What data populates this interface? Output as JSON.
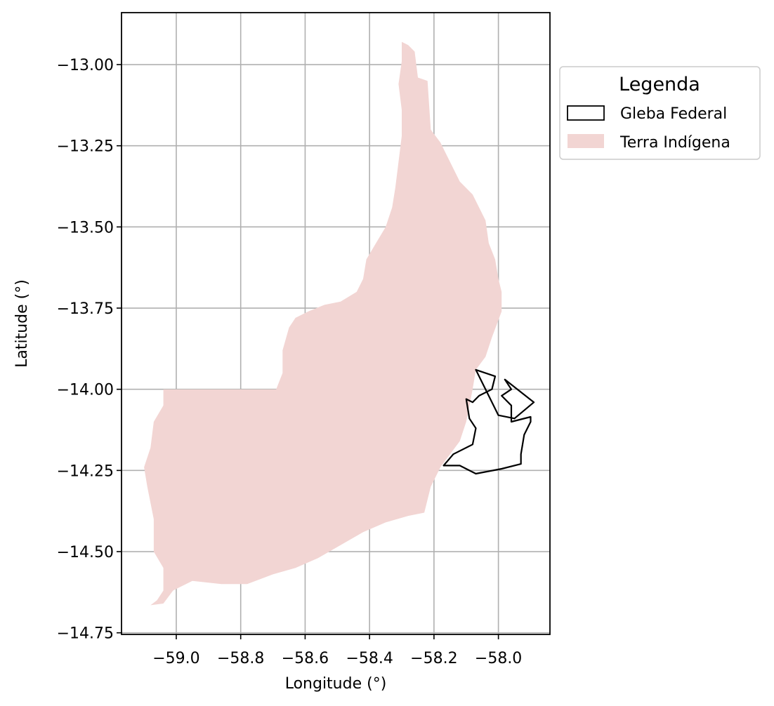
{
  "chart_data": {
    "type": "map",
    "xlabel": "Longitude (°)",
    "ylabel": "Latitude (°)",
    "xlim": [
      -59.17,
      -57.84
    ],
    "ylim": [
      -14.755,
      -12.84
    ],
    "xticks": [
      -59.0,
      -58.8,
      -58.6,
      -58.4,
      -58.2,
      -58.0
    ],
    "xtick_labels": [
      "−59.0",
      "−58.8",
      "−58.6",
      "−58.4",
      "−58.2",
      "−58.0"
    ],
    "yticks": [
      -13.0,
      -13.25,
      -13.5,
      -13.75,
      -14.0,
      -14.25,
      -14.5,
      -14.75
    ],
    "ytick_labels": [
      "−13.00",
      "−13.25",
      "−13.50",
      "−13.75",
      "−14.00",
      "−14.25",
      "−14.50",
      "−14.75"
    ],
    "grid": true,
    "legend": {
      "title": "Legenda",
      "placement": "outside-upper-right",
      "entries": [
        {
          "label": "Gleba Federal",
          "style": "outline",
          "color": "#000000"
        },
        {
          "label": "Terra Indígena",
          "style": "fill",
          "color": "#f2d5d3"
        }
      ]
    },
    "colors": {
      "terra_indigena_fill": "#f2d5d3",
      "gleba_outline": "#000000",
      "grid": "#b0b0b0"
    },
    "layers": [
      {
        "name": "Terra Indígena",
        "coordinates": [
          [
            -58.3,
            -12.93
          ],
          [
            -58.28,
            -12.94
          ],
          [
            -58.26,
            -12.96
          ],
          [
            -58.25,
            -13.04
          ],
          [
            -58.22,
            -13.05
          ],
          [
            -58.21,
            -13.2
          ],
          [
            -58.18,
            -13.24
          ],
          [
            -58.15,
            -13.3
          ],
          [
            -58.12,
            -13.36
          ],
          [
            -58.08,
            -13.4
          ],
          [
            -58.04,
            -13.48
          ],
          [
            -58.03,
            -13.55
          ],
          [
            -58.01,
            -13.6
          ],
          [
            -58.0,
            -13.66
          ],
          [
            -57.99,
            -13.7
          ],
          [
            -57.99,
            -13.76
          ],
          [
            -58.02,
            -13.84
          ],
          [
            -58.04,
            -13.9
          ],
          [
            -58.07,
            -13.94
          ],
          [
            -58.08,
            -14.0
          ],
          [
            -58.1,
            -14.1
          ],
          [
            -58.12,
            -14.16
          ],
          [
            -58.15,
            -14.2
          ],
          [
            -58.18,
            -14.24
          ],
          [
            -58.21,
            -14.3
          ],
          [
            -58.23,
            -14.38
          ],
          [
            -58.28,
            -14.39
          ],
          [
            -58.35,
            -14.41
          ],
          [
            -58.42,
            -14.44
          ],
          [
            -58.49,
            -14.48
          ],
          [
            -58.56,
            -14.52
          ],
          [
            -58.63,
            -14.55
          ],
          [
            -58.7,
            -14.57
          ],
          [
            -58.78,
            -14.6
          ],
          [
            -58.86,
            -14.6
          ],
          [
            -58.95,
            -14.59
          ],
          [
            -59.01,
            -14.62
          ],
          [
            -59.04,
            -14.66
          ],
          [
            -59.08,
            -14.665
          ],
          [
            -59.06,
            -14.65
          ],
          [
            -59.04,
            -14.62
          ],
          [
            -59.04,
            -14.55
          ],
          [
            -59.07,
            -14.5
          ],
          [
            -59.07,
            -14.4
          ],
          [
            -59.09,
            -14.3
          ],
          [
            -59.1,
            -14.24
          ],
          [
            -59.08,
            -14.18
          ],
          [
            -59.07,
            -14.1
          ],
          [
            -59.04,
            -14.05
          ],
          [
            -59.04,
            -14.0
          ],
          [
            -58.69,
            -14.0
          ],
          [
            -58.67,
            -13.95
          ],
          [
            -58.67,
            -13.88
          ],
          [
            -58.65,
            -13.81
          ],
          [
            -58.63,
            -13.78
          ],
          [
            -58.59,
            -13.76
          ],
          [
            -58.54,
            -13.74
          ],
          [
            -58.49,
            -13.73
          ],
          [
            -58.44,
            -13.7
          ],
          [
            -58.42,
            -13.66
          ],
          [
            -58.41,
            -13.6
          ],
          [
            -58.38,
            -13.55
          ],
          [
            -58.35,
            -13.5
          ],
          [
            -58.33,
            -13.44
          ],
          [
            -58.32,
            -13.38
          ],
          [
            -58.31,
            -13.3
          ],
          [
            -58.3,
            -13.22
          ],
          [
            -58.3,
            -13.14
          ],
          [
            -58.31,
            -13.06
          ],
          [
            -58.3,
            -12.99
          ]
        ]
      },
      {
        "name": "Gleba Federal",
        "coordinates": [
          [
            -58.07,
            -13.94
          ],
          [
            -58.01,
            -13.96
          ],
          [
            -58.02,
            -14.0
          ],
          [
            -58.06,
            -14.02
          ],
          [
            -58.08,
            -14.04
          ],
          [
            -58.1,
            -14.03
          ],
          [
            -58.09,
            -14.09
          ],
          [
            -58.07,
            -14.12
          ],
          [
            -58.08,
            -14.17
          ],
          [
            -58.14,
            -14.2
          ],
          [
            -58.17,
            -14.235
          ],
          [
            -58.12,
            -14.235
          ],
          [
            -58.07,
            -14.26
          ],
          [
            -57.99,
            -14.245
          ],
          [
            -57.93,
            -14.23
          ],
          [
            -57.93,
            -14.2
          ],
          [
            -57.92,
            -14.14
          ],
          [
            -57.9,
            -14.1
          ],
          [
            -57.9,
            -14.085
          ],
          [
            -57.96,
            -14.1
          ],
          [
            -57.96,
            -14.05
          ],
          [
            -57.99,
            -14.02
          ],
          [
            -57.96,
            -14.0
          ],
          [
            -57.98,
            -13.97
          ],
          [
            -57.89,
            -14.04
          ],
          [
            -57.95,
            -14.09
          ],
          [
            -58.0,
            -14.08
          ]
        ]
      }
    ]
  }
}
